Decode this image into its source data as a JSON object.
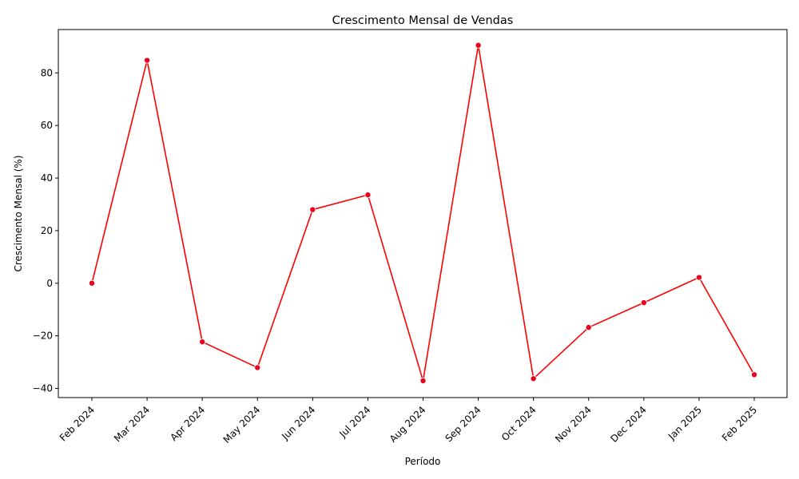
{
  "chart_data": {
    "type": "line",
    "title": "Crescimento Mensal de Vendas",
    "xlabel": "Período",
    "ylabel": "Crescimento Mensal (%)",
    "categories": [
      "Feb 2024",
      "Mar 2024",
      "Apr 2024",
      "May 2024",
      "Jun 2024",
      "Jul 2024",
      "Aug 2024",
      "Sep 2024",
      "Oct 2024",
      "Nov 2024",
      "Dec 2024",
      "Jan 2025",
      "Feb 2025"
    ],
    "series": [
      {
        "values": [
          0.0,
          84.8,
          -22.3,
          -32.1,
          28.0,
          33.6,
          -37.1,
          90.5,
          -36.3,
          -16.8,
          -7.4,
          2.2,
          -34.8
        ]
      }
    ],
    "yticks": [
      -40,
      -20,
      0,
      20,
      40,
      60,
      80
    ],
    "ytick_labels": [
      "−40",
      "−20",
      "0",
      "20",
      "40",
      "60",
      "80"
    ],
    "ylim": [
      -43.5,
      96.5
    ],
    "grid": false,
    "legend": "none",
    "line_color": "#ff0000",
    "marker_color": "#e8001c"
  }
}
